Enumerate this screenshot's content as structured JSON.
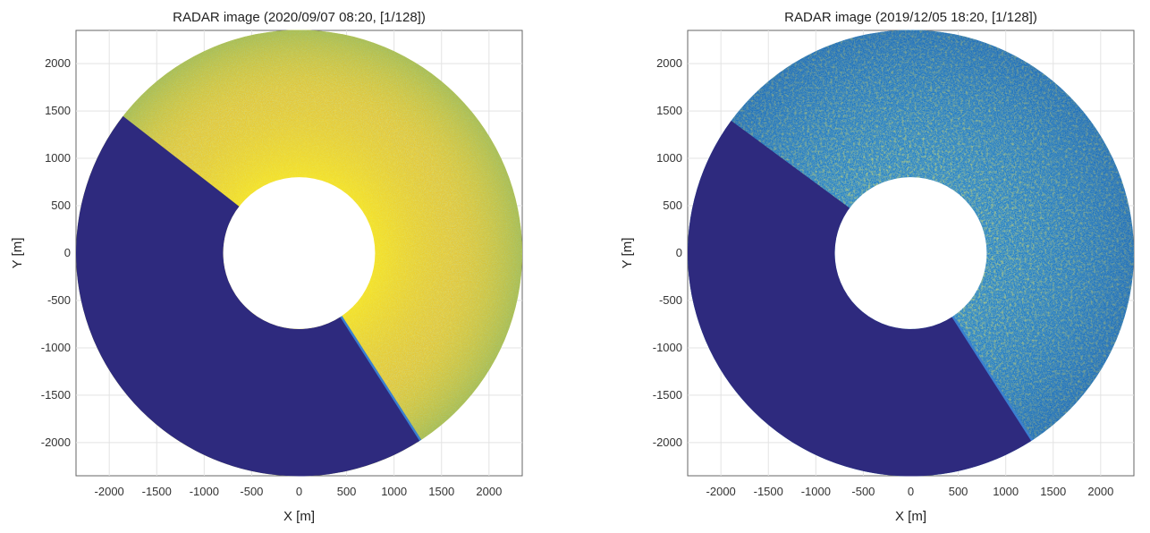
{
  "chart_data": [
    {
      "type": "heatmap",
      "title": "RADAR image (2020/09/07 08:20, [1/128])",
      "xlabel": "X [m]",
      "ylabel": "Y [m]",
      "xlim": [
        -2350,
        2350
      ],
      "ylim": [
        -2350,
        2350
      ],
      "xticks": [
        -2000,
        -1500,
        -1000,
        -500,
        0,
        500,
        1000,
        1500,
        2000
      ],
      "yticks": [
        2000,
        1500,
        1000,
        500,
        0,
        -500,
        -1000,
        -1500,
        -2000
      ],
      "grid": true,
      "annulus": {
        "inner_radius": 800,
        "outer_radius": 2350
      },
      "masked_sector": {
        "start_point": [
          -1800,
          1400
        ],
        "end_point": [
          1250,
          -1950
        ],
        "color": "#2e2a7e"
      },
      "colors": {
        "base": "#e0c43a",
        "high": "#f8e020",
        "low": "#8db860",
        "mask": "#2e2a7e",
        "seam": "#3a7fd0"
      }
    },
    {
      "type": "heatmap",
      "title": "RADAR image (2019/12/05 18:20, [1/128])",
      "xlabel": "X [m]",
      "ylabel": "Y [m]",
      "xlim": [
        -2350,
        2350
      ],
      "ylim": [
        -2350,
        2350
      ],
      "xticks": [
        -2000,
        -1500,
        -1000,
        -500,
        0,
        500,
        1000,
        1500,
        2000
      ],
      "yticks": [
        2000,
        1500,
        1000,
        500,
        0,
        -500,
        -1000,
        -1500,
        -2000
      ],
      "grid": true,
      "annulus": {
        "inner_radius": 800,
        "outer_radius": 2350
      },
      "masked_sector": {
        "start_point": [
          -1900,
          1400
        ],
        "end_point": [
          1250,
          -1950
        ],
        "color": "#2e2a7e"
      },
      "colors": {
        "base": "#1f7dc8",
        "high": "#e8d61c",
        "low": "#1a5fb0",
        "mask": "#2e2a7e",
        "seam": "#3a7fd0"
      }
    }
  ]
}
